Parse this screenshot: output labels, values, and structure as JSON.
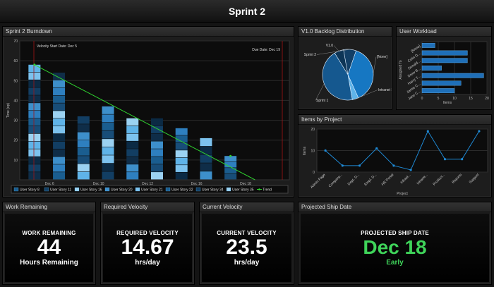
{
  "header": {
    "title": "Sprint 2"
  },
  "colors": {
    "accent_green": "#3fd45a",
    "line_blue": "#1f8ad6"
  },
  "burndown": {
    "title": "Sprint 2 Burndown",
    "chart_data": {
      "type": "bar",
      "stacked": true,
      "ylabel": "Time (op)",
      "ylim": [
        0,
        70
      ],
      "yticks": [
        10,
        20,
        30,
        40,
        50,
        60,
        70
      ],
      "x_ticks": [
        "Dec 6",
        "Dec 10",
        "Dec 12",
        "Dec 16",
        "Dec 18"
      ],
      "annotations": [
        "Velocity Start Date: Dec 5",
        "Due Date: Dec 19"
      ],
      "totals": [
        58,
        54,
        32,
        37,
        31,
        31,
        26,
        21,
        12,
        0
      ],
      "trend": [
        58,
        0
      ],
      "legend": [
        "User Story 8",
        "User Story 11",
        "User Story 16",
        "User Story 20",
        "User Story 21",
        "User Story 22",
        "User Story 34",
        "User Story 35",
        "Trend"
      ]
    }
  },
  "backlog": {
    "title": "V1.0 Backlog Distribution",
    "chart_data": {
      "type": "pie",
      "labels": [
        "V1.0",
        "Sprint 2",
        "[None]",
        "Intranet Si",
        "Sprint 1"
      ],
      "values": [
        6,
        8,
        38,
        4,
        44
      ]
    }
  },
  "workload": {
    "title": "User Workload",
    "chart_data": {
      "type": "bar",
      "orientation": "horizontal",
      "ylabel": "Assigned To",
      "xlabel": "Items",
      "categories": [
        "[None]",
        "Colin D...",
        "Donald...",
        "Drew B...",
        "Harry Y...",
        "Jamie C...",
        "Jane C..."
      ],
      "values": [
        4,
        14,
        14,
        6,
        19,
        12,
        10
      ],
      "xticks": [
        0,
        5,
        10,
        15,
        20
      ]
    }
  },
  "projects": {
    "title": "Items by Project",
    "chart_data": {
      "type": "line",
      "ylabel": "Items",
      "xlabel": "Project",
      "categories": [
        "Admin Page",
        "Company...",
        "Dept. D...",
        "Empl. D...",
        "HR Portal",
        "Infrast...",
        "Intrane...",
        "Product...",
        "Reports",
        "Support"
      ],
      "values": [
        10,
        3,
        3,
        11,
        3,
        1,
        19,
        6,
        6,
        19
      ],
      "yticks": [
        0,
        10,
        20
      ],
      "ylim": [
        0,
        20
      ]
    }
  },
  "kpis": {
    "work_remaining": {
      "panel": "Work Remaining",
      "label": "WORK REMAINING",
      "value": "44",
      "unit": "Hours Remaining"
    },
    "required_velocity": {
      "panel": "Required Velocity",
      "label": "REQUIRED VELOCITY",
      "value": "14.67",
      "unit": "hrs/day"
    },
    "current_velocity": {
      "panel": "Current Velocity",
      "label": "CURRENT VELOCITY",
      "value": "23.5",
      "unit": "hrs/day"
    },
    "ship_date": {
      "panel": "Projected Ship Date",
      "label": "PROJECTED SHIP DATE",
      "value": "Dec 18",
      "unit": "Early"
    }
  }
}
